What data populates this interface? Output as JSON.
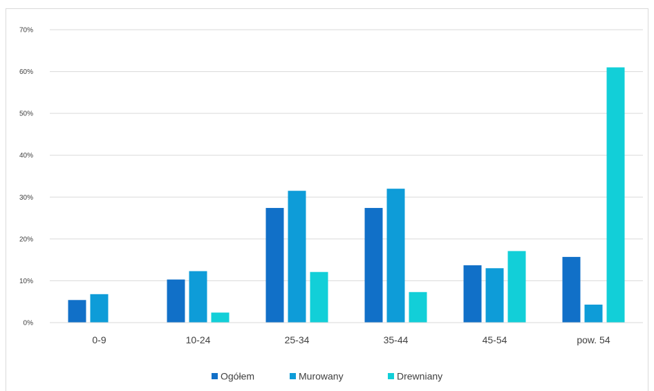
{
  "chart_data": {
    "type": "bar",
    "title": "",
    "xlabel": "",
    "ylabel": "",
    "categories": [
      "0-9",
      "10-24",
      "25-34",
      "35-44",
      "45-54",
      "pow. 54"
    ],
    "series": [
      {
        "name": "Ogółem",
        "color": "#1170C8",
        "values": [
          5.4,
          10.3,
          27.4,
          27.4,
          13.7,
          15.7
        ]
      },
      {
        "name": "Murowany",
        "color": "#0E9CD8",
        "values": [
          6.8,
          12.3,
          31.5,
          32.0,
          13.0,
          4.3
        ]
      },
      {
        "name": "Drewniany",
        "color": "#12CFD8",
        "values": [
          0,
          2.4,
          12.1,
          7.3,
          17.1,
          61.0
        ]
      }
    ],
    "ylim": [
      0,
      70
    ],
    "yticks": [
      0,
      10,
      20,
      30,
      40,
      50,
      60,
      70
    ],
    "ytick_labels": [
      "0%",
      "10%",
      "20%",
      "30%",
      "40%",
      "50%",
      "60%",
      "70%"
    ],
    "grid": true,
    "legend": "bottom-center"
  }
}
